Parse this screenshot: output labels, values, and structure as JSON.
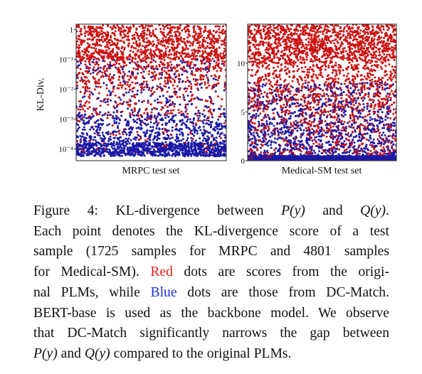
{
  "chart_data": [
    {
      "type": "scatter",
      "xlabel": "MRPC test set",
      "ylabel": "KL-Div.",
      "yscale": "log",
      "ylim": [
        4e-05,
        1.5
      ],
      "yticks": [
        {
          "label": "1",
          "value": 1
        },
        {
          "label": "10⁻¹",
          "value": 0.1
        },
        {
          "label": "10⁻²",
          "value": 0.01
        },
        {
          "label": "10⁻³",
          "value": 0.001
        },
        {
          "label": "10⁻⁴",
          "value": 0.0001
        }
      ],
      "series": [
        {
          "name": "Red",
          "color": "#cc1010",
          "n_points": 1725,
          "distribution": "dense near 0.1–1.5, sparse down to 1e-3, few below"
        },
        {
          "name": "Blue",
          "color": "#1a1aa6",
          "n_points": 1725,
          "distribution": "dense band near 1e-4, scattered up to ~0.1"
        }
      ]
    },
    {
      "type": "scatter",
      "xlabel": "Medical-SM test set",
      "ylabel": "",
      "yscale": "linear",
      "ylim": [
        0,
        14
      ],
      "yticks": [
        {
          "label": "0",
          "value": 0
        },
        {
          "label": "5",
          "value": 5
        },
        {
          "label": "10",
          "value": 10
        }
      ],
      "series": [
        {
          "name": "Red",
          "color": "#cc1010",
          "n_points": 4801,
          "distribution": "dense near 10–14, spread throughout"
        },
        {
          "name": "Blue",
          "color": "#1a1aa6",
          "n_points": 4801,
          "distribution": "dense band near 0, scattered up to ~8"
        }
      ]
    }
  ],
  "caption": {
    "lines": [
      [
        {
          "t": "Figure 4:  KL-divergence between "
        },
        {
          "t": "P(y)",
          "c": "math"
        },
        {
          "t": " and "
        },
        {
          "t": "Q(y)",
          "c": "math"
        },
        {
          "t": "."
        }
      ],
      [
        {
          "t": "Each point denotes the KL-divergence score of a test"
        }
      ],
      [
        {
          "t": "sample (1725 samples for MRPC and 4801 samples"
        }
      ],
      [
        {
          "t": "for Medical-SM). "
        },
        {
          "t": "Red",
          "c": "red"
        },
        {
          "t": " dots are scores from the origi-"
        }
      ],
      [
        {
          "t": "nal PLMs, while "
        },
        {
          "t": "Blue",
          "c": "blue"
        },
        {
          "t": " dots are those from DC-Match."
        }
      ],
      [
        {
          "t": "BERT-base is used as the backbone model. We observe"
        }
      ],
      [
        {
          "t": "that DC-Match significantly narrows the gap between"
        }
      ],
      [
        {
          "t": "P(y)",
          "c": "math"
        },
        {
          "t": " and "
        },
        {
          "t": "Q(y)",
          "c": "math"
        },
        {
          "t": " compared to the original PLMs."
        }
      ]
    ]
  }
}
